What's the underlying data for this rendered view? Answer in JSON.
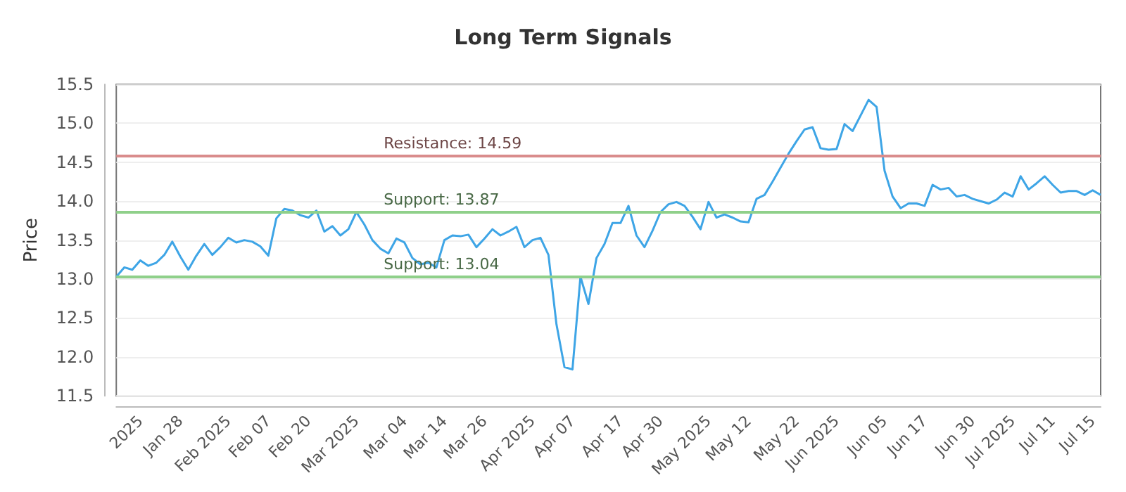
{
  "chart_data": {
    "type": "line",
    "title": "Long Term Signals",
    "ylabel": "Price",
    "categories": [
      null,
      null,
      null,
      "2025",
      null,
      null,
      null,
      null,
      "Jan 28",
      null,
      null,
      null,
      null,
      null,
      "Feb 2025",
      null,
      null,
      null,
      null,
      "Feb 07",
      null,
      null,
      null,
      null,
      "Feb 20",
      null,
      null,
      null,
      null,
      null,
      "Mar 2025",
      null,
      null,
      null,
      null,
      null,
      "Mar 04",
      null,
      null,
      null,
      null,
      "Mar 14",
      null,
      null,
      null,
      null,
      "Mar 26",
      null,
      null,
      null,
      null,
      null,
      "Apr 2025",
      null,
      null,
      null,
      null,
      "Apr 07",
      null,
      null,
      null,
      null,
      null,
      "Apr 17",
      null,
      null,
      null,
      null,
      "Apr 30",
      null,
      null,
      null,
      null,
      null,
      "May 2025",
      null,
      null,
      null,
      null,
      "May 12",
      null,
      null,
      null,
      null,
      null,
      "May 22",
      null,
      null,
      null,
      null,
      "Jun 2025",
      null,
      null,
      null,
      null,
      null,
      "Jun 05",
      null,
      null,
      null,
      null,
      "Jun 17",
      null,
      null,
      null,
      null,
      null,
      "Jun 30",
      null,
      null,
      null,
      null,
      "Jul 2025",
      null,
      null,
      null,
      null,
      "Jul 11",
      null,
      null,
      null,
      null,
      "Jul 15",
      null
    ],
    "series": [
      {
        "color": "#3ea5e6",
        "values": [
          13.03,
          13.15,
          13.12,
          13.24,
          13.17,
          13.21,
          13.31,
          13.48,
          13.29,
          13.12,
          13.3,
          13.45,
          13.31,
          13.41,
          13.53,
          13.47,
          13.5,
          13.48,
          13.42,
          13.3,
          13.78,
          13.9,
          13.88,
          13.82,
          13.79,
          13.88,
          13.61,
          13.68,
          13.56,
          13.64,
          13.86,
          13.7,
          13.5,
          13.39,
          13.33,
          13.52,
          13.47,
          13.27,
          13.19,
          13.21,
          13.15,
          13.5,
          13.56,
          13.55,
          13.57,
          13.41,
          13.52,
          13.64,
          13.56,
          13.61,
          13.67,
          13.41,
          13.5,
          13.53,
          13.31,
          12.42,
          11.87,
          11.84,
          13.03,
          12.68,
          13.27,
          13.45,
          13.72,
          13.72,
          13.94,
          13.56,
          13.41,
          13.62,
          13.86,
          13.96,
          13.99,
          13.94,
          13.8,
          13.64,
          13.99,
          13.79,
          13.83,
          13.79,
          13.74,
          13.73,
          14.03,
          14.08,
          14.25,
          14.43,
          14.61,
          14.77,
          14.92,
          14.95,
          14.68,
          14.66,
          14.67,
          14.99,
          14.9,
          15.1,
          15.3,
          15.21,
          14.39,
          14.06,
          13.91,
          13.97,
          13.97,
          13.94,
          14.21,
          14.15,
          14.17,
          14.06,
          14.08,
          14.03,
          14.0,
          13.97,
          14.02,
          14.11,
          14.06,
          14.32,
          14.15,
          14.23,
          14.32,
          14.21,
          14.11,
          14.13,
          14.13,
          14.08,
          14.14,
          14.08
        ]
      }
    ],
    "ylim": [
      11.5,
      15.5
    ],
    "yticks": [
      11.5,
      {
        "value": 12,
        "label": "12.0"
      },
      12.5,
      {
        "value": 13,
        "label": "13.0"
      },
      13.5,
      {
        "value": 14,
        "label": "14.0"
      },
      14.5,
      {
        "value": 15,
        "label": "15.0"
      },
      15.5
    ],
    "ref_lines": [
      {
        "axis": "y",
        "value": 14.59,
        "label": "Resistance: 14.59",
        "color": "#d98c8c"
      },
      {
        "axis": "y",
        "value": 13.87,
        "label": "Support: 13.87",
        "color": "#8fd08a"
      },
      {
        "axis": "y",
        "value": 13.04,
        "label": "Support: 13.04",
        "color": "#8fd08a"
      }
    ],
    "grid": "y",
    "marker": "none",
    "line_style": "solid"
  }
}
